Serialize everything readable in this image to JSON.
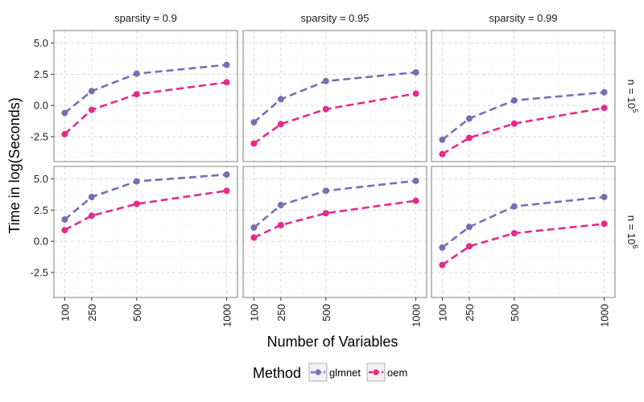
{
  "chart_data": {
    "type": "line",
    "facet_columns": [
      "sparsity = 0.9",
      "sparsity = 0.95",
      "sparsity = 0.99"
    ],
    "facet_rows": [
      {
        "label": "n = 10",
        "exponent": "5"
      },
      {
        "label": "n = 10",
        "exponent": "6"
      }
    ],
    "x": [
      100,
      250,
      500,
      1000
    ],
    "x_tick_labels": [
      "100",
      "250",
      "500",
      "1000"
    ],
    "y_ticks": [
      -2.5,
      0.0,
      2.5,
      5.0
    ],
    "y_tick_labels": [
      "-2.5",
      "0.0",
      "2.5",
      "5.0"
    ],
    "ylim": [
      -4.5,
      6.0
    ],
    "xlim": [
      40,
      1060
    ],
    "xlabel": "Number of Variables",
    "ylabel": "Time in log(Seconds)",
    "legend_title": "Method",
    "legend_position": "bottom",
    "grid": true,
    "series_colors": {
      "glmnet": "#7570b3",
      "oem": "#e7298a"
    },
    "panels": [
      {
        "row": 0,
        "col": 0,
        "series": [
          {
            "name": "glmnet",
            "values": [
              -0.6,
              1.15,
              2.55,
              3.25
            ]
          },
          {
            "name": "oem",
            "values": [
              -2.3,
              -0.35,
              0.9,
              1.85
            ]
          }
        ]
      },
      {
        "row": 0,
        "col": 1,
        "series": [
          {
            "name": "glmnet",
            "values": [
              -1.35,
              0.5,
              1.95,
              2.65
            ]
          },
          {
            "name": "oem",
            "values": [
              -3.05,
              -1.5,
              -0.3,
              0.95
            ]
          }
        ]
      },
      {
        "row": 0,
        "col": 2,
        "series": [
          {
            "name": "glmnet",
            "values": [
              -2.75,
              -1.05,
              0.4,
              1.05
            ]
          },
          {
            "name": "oem",
            "values": [
              -3.9,
              -2.6,
              -1.45,
              -0.2
            ]
          }
        ]
      },
      {
        "row": 1,
        "col": 0,
        "series": [
          {
            "name": "glmnet",
            "values": [
              1.75,
              3.55,
              4.8,
              5.35
            ]
          },
          {
            "name": "oem",
            "values": [
              0.9,
              2.05,
              3.0,
              4.05
            ]
          }
        ]
      },
      {
        "row": 1,
        "col": 1,
        "series": [
          {
            "name": "glmnet",
            "values": [
              1.1,
              2.9,
              4.05,
              4.85
            ]
          },
          {
            "name": "oem",
            "values": [
              0.3,
              1.3,
              2.25,
              3.25
            ]
          }
        ]
      },
      {
        "row": 1,
        "col": 2,
        "series": [
          {
            "name": "glmnet",
            "values": [
              -0.5,
              1.15,
              2.8,
              3.55
            ]
          },
          {
            "name": "oem",
            "values": [
              -1.9,
              -0.4,
              0.65,
              1.4
            ]
          }
        ]
      }
    ],
    "legend": [
      {
        "name": "glmnet",
        "label": "glmnet"
      },
      {
        "name": "oem",
        "label": "oem"
      }
    ]
  }
}
